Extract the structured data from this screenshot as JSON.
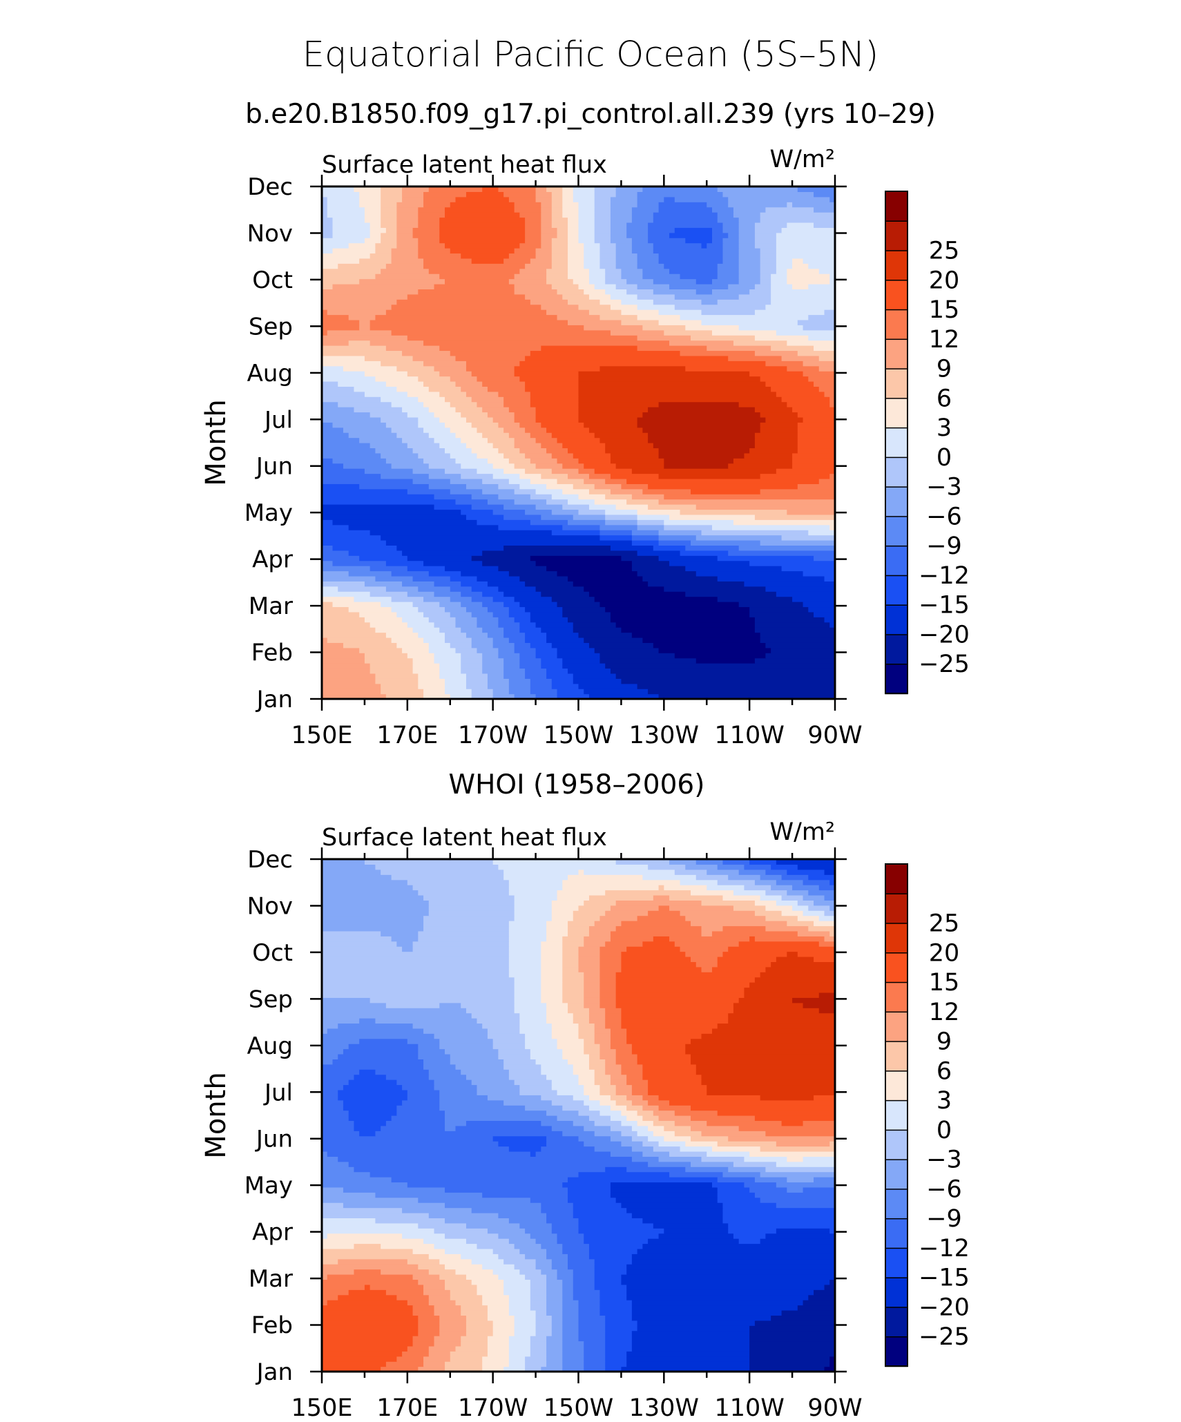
{
  "header": {
    "title": "Equatorial Pacific Ocean (5S–5N)",
    "subtitle": "b.e20.B1850.f09_g17.pi_control.all.239 (yrs 10–29)",
    "panel2_title": "WHOI (1958–2006)"
  },
  "chart_data": [
    {
      "type": "heatmap",
      "left_title": "Surface latent heat flux",
      "units": "W/m²",
      "ylabel": "Month",
      "xlabel": "",
      "x_tick_labels": [
        "150E",
        "170E",
        "170W",
        "150W",
        "130W",
        "110W",
        "90W"
      ],
      "x": [
        150,
        160,
        170,
        180,
        190,
        200,
        210,
        220,
        230,
        240,
        250,
        260,
        270
      ],
      "y_tick_labels": [
        "Jan",
        "Feb",
        "Mar",
        "Apr",
        "May",
        "Jun",
        "Jul",
        "Aug",
        "Sep",
        "Oct",
        "Nov",
        "Dec"
      ],
      "levels": [
        -25,
        -20,
        -15,
        -12,
        -9,
        -6,
        -3,
        0,
        3,
        6,
        9,
        12,
        15,
        20,
        25
      ],
      "colors": [
        "#00007f",
        "#00199e",
        "#0031d6",
        "#1a50f3",
        "#3a6cf4",
        "#5c8af5",
        "#84a8f7",
        "#afc6fa",
        "#d8e6fc",
        "#fde8d9",
        "#fcc7a9",
        "#fca381",
        "#fb7a4f",
        "#f9521f",
        "#df3607",
        "#b81c04",
        "#870000"
      ],
      "grid": false,
      "values": [
        [
          12,
          10,
          8,
          3,
          -3,
          -9,
          -14,
          -18,
          -20,
          -22,
          -22,
          -22,
          -20
        ],
        [
          10,
          9,
          6,
          1,
          -5,
          -12,
          -18,
          -23,
          -25,
          -26,
          -26,
          -24,
          -22
        ],
        [
          7,
          5,
          1,
          -4,
          -10,
          -17,
          -23,
          -27,
          -28,
          -27,
          -25,
          -21,
          -18
        ],
        [
          -10,
          -12,
          -15,
          -18,
          -22,
          -26,
          -28,
          -26,
          -20,
          -16,
          -14,
          -13,
          -12
        ],
        [
          -16,
          -17,
          -18,
          -16,
          -12,
          -8,
          -3,
          1,
          5,
          7,
          8,
          9,
          10
        ],
        [
          -10,
          -8,
          -5,
          -1,
          3,
          9,
          14,
          21,
          25,
          26,
          24,
          20,
          16
        ],
        [
          -6,
          -4,
          -1,
          4,
          9,
          15,
          20,
          24,
          27,
          28,
          27,
          21,
          16
        ],
        [
          1,
          3,
          6,
          10,
          14,
          16,
          20,
          22,
          22,
          21,
          20,
          16,
          12
        ],
        [
          14,
          12,
          14,
          15,
          14,
          14,
          12,
          10,
          7,
          4,
          2,
          0,
          -2
        ],
        [
          8,
          9,
          11,
          12,
          13,
          10,
          5,
          -3,
          -8,
          -10,
          -5,
          4,
          3
        ],
        [
          -1,
          2,
          11,
          17,
          20,
          14,
          3,
          -5,
          -12,
          -13,
          -4,
          2,
          1
        ],
        [
          0,
          4,
          10,
          14,
          15,
          12,
          2,
          -4,
          -8,
          -7,
          -3,
          -6,
          -9
        ]
      ]
    },
    {
      "type": "heatmap",
      "left_title": "Surface latent heat flux",
      "units": "W/m²",
      "ylabel": "Month",
      "xlabel": "",
      "x_tick_labels": [
        "150E",
        "170E",
        "170W",
        "150W",
        "130W",
        "110W",
        "90W"
      ],
      "x": [
        150,
        160,
        170,
        180,
        190,
        200,
        210,
        220,
        230,
        240,
        250,
        260,
        270
      ],
      "y_tick_labels": [
        "Jan",
        "Feb",
        "Mar",
        "Apr",
        "May",
        "Jun",
        "Jul",
        "Aug",
        "Sep",
        "Oct",
        "Nov",
        "Dec"
      ],
      "levels": [
        -25,
        -20,
        -15,
        -12,
        -9,
        -6,
        -3,
        0,
        3,
        6,
        9,
        12,
        15,
        20,
        25
      ],
      "colors": [
        "#00007f",
        "#00199e",
        "#0031d6",
        "#1a50f3",
        "#3a6cf4",
        "#5c8af5",
        "#84a8f7",
        "#afc6fa",
        "#d8e6fc",
        "#fde8d9",
        "#fcc7a9",
        "#fca381",
        "#fb7a4f",
        "#f9521f",
        "#df3607",
        "#b81c04",
        "#870000"
      ],
      "grid": false,
      "values": [
        [
          15,
          16,
          13,
          8,
          5,
          -2,
          -8,
          -15,
          -17,
          -18,
          -20,
          -23,
          -26
        ],
        [
          17,
          20,
          17,
          11,
          6,
          0,
          -9,
          -14,
          -17,
          -18,
          -20,
          -21,
          -23
        ],
        [
          12,
          14,
          13,
          8,
          4,
          -1,
          -10,
          -15,
          -17,
          -18,
          -17,
          -18,
          -20
        ],
        [
          2,
          3,
          2,
          -1,
          -3,
          -7,
          -12,
          -14,
          -15,
          -16,
          -14,
          -16,
          -15
        ],
        [
          -6,
          -8,
          -9,
          -10,
          -11,
          -10,
          -13,
          -16,
          -17,
          -16,
          -12,
          -8,
          -9
        ],
        [
          -10,
          -12,
          -11,
          -9,
          -12,
          -13,
          -9,
          -5,
          3,
          8,
          10,
          12,
          11
        ],
        [
          -11,
          -14,
          -12,
          -8,
          -5,
          -2,
          2,
          10,
          18,
          20,
          21,
          22,
          20
        ],
        [
          -7,
          -10,
          -10,
          -5,
          -3,
          1,
          5,
          14,
          19,
          21,
          22,
          23,
          23
        ],
        [
          -3,
          -3,
          -1,
          -3,
          -2,
          2,
          8,
          16,
          19,
          17,
          21,
          25,
          26
        ],
        [
          -2,
          -2,
          -3,
          -2,
          -1,
          2,
          9,
          15,
          17,
          13,
          18,
          20,
          18
        ],
        [
          -4,
          -4,
          -4,
          -2,
          -1,
          1,
          6,
          10,
          12,
          10,
          8,
          2,
          -5
        ],
        [
          -5,
          -3,
          -2,
          -1,
          0,
          1,
          2,
          -1,
          -3,
          -8,
          -13,
          -18,
          -20
        ]
      ]
    }
  ]
}
